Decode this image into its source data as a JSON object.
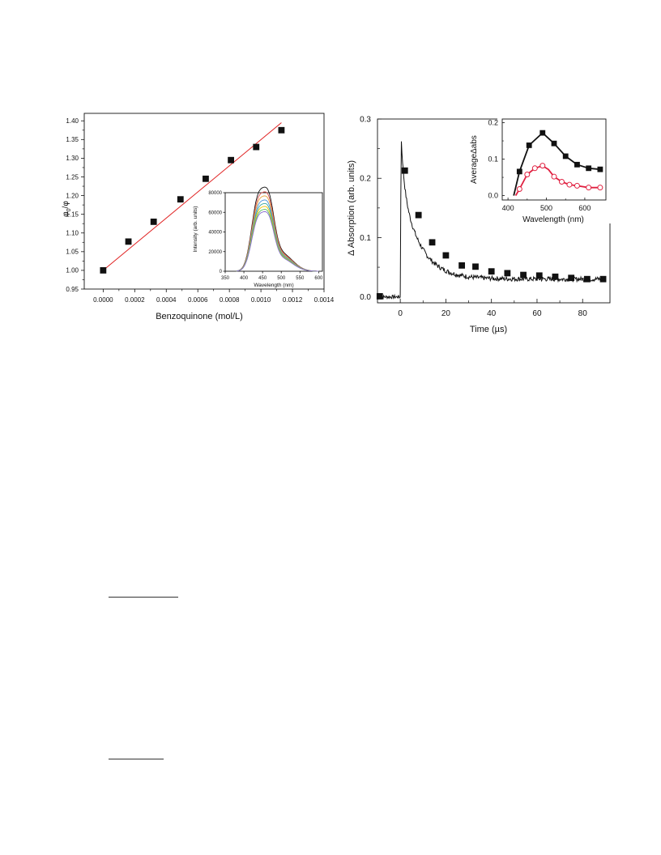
{
  "chart_data": [
    {
      "id": "stern-volmer",
      "type": "scatter",
      "title": "",
      "xlabel": "Benzoquinone  (mol/L)",
      "ylabel": "φ0/φ",
      "xlim": [
        -0.00012,
        0.0014
      ],
      "ylim": [
        0.95,
        1.42
      ],
      "xticks": [
        0,
        0.0002,
        0.0004,
        0.0006,
        0.0008,
        0.001,
        0.0012,
        0.0014
      ],
      "xtick_labels": [
        "0.0000",
        "0.0002",
        "0.0004",
        "0.0006",
        "0.0008",
        "0.0010",
        "0.0012",
        "0.0014"
      ],
      "yticks": [
        0.95,
        1.0,
        1.05,
        1.1,
        1.15,
        1.2,
        1.25,
        1.3,
        1.35,
        1.4
      ],
      "ytick_labels": [
        "0.95",
        "1.00",
        "1.05",
        "1.10",
        "1.15",
        "1.20",
        "1.25",
        "1.30",
        "1.35",
        "1.40"
      ],
      "series": [
        {
          "kind": "points",
          "marker": "square",
          "color": "#111111",
          "x": [
            0.0,
            0.00016,
            0.00032,
            0.00049,
            0.00065,
            0.00081,
            0.00097,
            0.00113
          ],
          "y": [
            1.0,
            1.077,
            1.13,
            1.19,
            1.245,
            1.295,
            1.33,
            1.375
          ]
        },
        {
          "kind": "fit-line",
          "color": "#e02020",
          "x": [
            0.0,
            0.00113
          ],
          "y": [
            1.0,
            1.395
          ]
        }
      ],
      "inset": {
        "type": "line",
        "xlabel": "Wavelength (nm)",
        "ylabel": "Intensity (arb. units)",
        "xlim": [
          350,
          610
        ],
        "ylim": [
          0,
          80000
        ],
        "xticks": [
          350,
          400,
          450,
          500,
          550,
          600
        ],
        "yticks": [
          0,
          20000,
          40000,
          60000,
          80000
        ],
        "ytick_labels": [
          "0",
          "20000",
          "40000",
          "60000",
          "80000"
        ],
        "colors": [
          "#111111",
          "#d9534f",
          "#e8a33d",
          "#4a8fd8",
          "#3aa8a0",
          "#f2c200",
          "#5bbf5b",
          "#8a6fd0"
        ],
        "peak_values": [
          72000,
          68000,
          64500,
          61000,
          58000,
          55500,
          53000,
          51000
        ]
      }
    },
    {
      "id": "transient-absorption",
      "type": "line",
      "title": "",
      "xlabel": "Time (µs)",
      "ylabel": "Δ Absorption (arb. units)",
      "xlim": [
        -10,
        92
      ],
      "ylim": [
        -0.01,
        0.3
      ],
      "xticks": [
        0,
        20,
        40,
        60,
        80
      ],
      "xtick_labels": [
        "0",
        "20",
        "40",
        "60",
        "80"
      ],
      "yticks": [
        0.0,
        0.1,
        0.2,
        0.3
      ],
      "ytick_labels": [
        "0.0",
        "0.1",
        "0.2",
        "0.3"
      ],
      "series": [
        {
          "kind": "trace",
          "color": "#111111",
          "peak": 0.272,
          "plateau": 0.03,
          "amplitude": 0.165,
          "tau": 8
        },
        {
          "kind": "points",
          "marker": "square",
          "color": "#111111",
          "x": [
            -9,
            2,
            8,
            14,
            20,
            27,
            33,
            40,
            47,
            54,
            61,
            68,
            75,
            82,
            89
          ],
          "y": [
            0.001,
            0.213,
            0.138,
            0.092,
            0.07,
            0.053,
            0.051,
            0.043,
            0.04,
            0.037,
            0.036,
            0.034,
            0.032,
            0.03,
            0.03
          ]
        }
      ],
      "inset": {
        "type": "line",
        "xlabel": "Wavelength (nm)",
        "ylabel": "AverageΔabs",
        "xlim": [
          385,
          655
        ],
        "ylim": [
          -0.012,
          0.21
        ],
        "xticks": [
          400,
          500,
          600
        ],
        "yticks": [
          0.0,
          0.1,
          0.2
        ],
        "ytick_labels": [
          "0.0",
          "0.1",
          "0.2"
        ],
        "series": [
          {
            "color": "#111111",
            "marker": "filled-square",
            "x": [
              415,
              430,
              455,
              490,
              520,
              550,
              580,
              610,
              640
            ],
            "y": [
              0.0,
              0.066,
              0.138,
              0.172,
              0.143,
              0.108,
              0.085,
              0.075,
              0.072
            ],
            "marker_x": [
              430,
              455,
              490,
              520,
              550,
              580,
              610,
              640
            ]
          },
          {
            "color": "#e02040",
            "marker": "open-circle",
            "x": [
              420,
              430,
              450,
              470,
              490,
              505,
              520,
              540,
              560,
              580,
              610,
              640
            ],
            "y": [
              0.0,
              0.018,
              0.058,
              0.075,
              0.082,
              0.072,
              0.052,
              0.038,
              0.03,
              0.027,
              0.022,
              0.022
            ],
            "marker_x": [
              430,
              450,
              470,
              490,
              520,
              540,
              560,
              580,
              610,
              640
            ]
          }
        ]
      }
    }
  ]
}
